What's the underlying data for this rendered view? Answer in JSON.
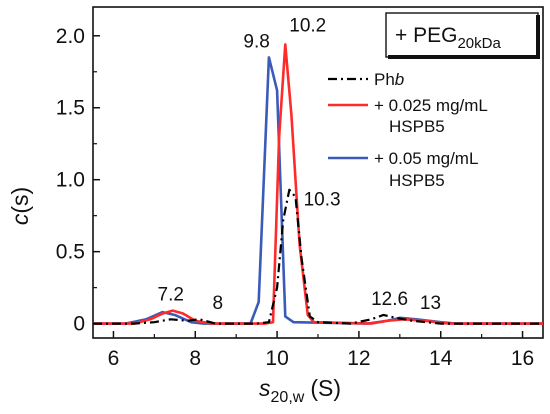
{
  "chart_data": {
    "type": "line",
    "xlabel_main": "s",
    "xlabel_sub": "20,w",
    "xlabel_unit": "(S)",
    "ylabel_main": "c",
    "ylabel_unit": "(s)",
    "xlim": [
      5.5,
      16.5
    ],
    "ylim": [
      -0.1,
      2.2
    ],
    "xticks": [
      6,
      8,
      10,
      12,
      14,
      16
    ],
    "yticks": [
      0,
      0.5,
      1.0,
      1.5,
      2.0
    ],
    "ytick_labels": [
      "0",
      "0.5",
      "1.0",
      "1.5",
      "2.0"
    ],
    "condition_main": "+ PEG",
    "condition_sub": "20kDa",
    "legend_position": "top-right",
    "series": [
      {
        "name": "Phb",
        "name_main": "Ph",
        "name_italic": "b",
        "color": "#000000",
        "dash": "dash-dot",
        "points": [
          [
            5.5,
            0
          ],
          [
            6.5,
            0
          ],
          [
            7.0,
            0.01
          ],
          [
            7.4,
            0.03
          ],
          [
            7.8,
            0.02
          ],
          [
            8.1,
            0.03
          ],
          [
            8.5,
            0.0
          ],
          [
            9.5,
            0.0
          ],
          [
            9.8,
            0.01
          ],
          [
            10.0,
            0.25
          ],
          [
            10.15,
            0.72
          ],
          [
            10.3,
            0.93
          ],
          [
            10.45,
            0.88
          ],
          [
            10.6,
            0.45
          ],
          [
            10.8,
            0.05
          ],
          [
            11.0,
            0.01
          ],
          [
            11.8,
            0.0
          ],
          [
            12.3,
            0.03
          ],
          [
            12.6,
            0.06
          ],
          [
            12.9,
            0.04
          ],
          [
            13.3,
            0.02
          ],
          [
            14.0,
            0.0
          ],
          [
            16.5,
            0.0
          ]
        ]
      },
      {
        "name": "+ 0.025 mg/mL HSPB5",
        "line1": "+ 0.025 mg/mL",
        "line2": "HSPB5",
        "color": "#ff2b2b",
        "dash": "solid",
        "points": [
          [
            5.5,
            0
          ],
          [
            6.5,
            0
          ],
          [
            6.9,
            0.03
          ],
          [
            7.2,
            0.07
          ],
          [
            7.45,
            0.09
          ],
          [
            7.7,
            0.07
          ],
          [
            8.0,
            0.02
          ],
          [
            8.4,
            0.0
          ],
          [
            9.7,
            0.0
          ],
          [
            9.9,
            0.01
          ],
          [
            10.05,
            1.3
          ],
          [
            10.2,
            1.94
          ],
          [
            10.35,
            1.45
          ],
          [
            10.55,
            0.55
          ],
          [
            10.75,
            0.06
          ],
          [
            10.9,
            0.01
          ],
          [
            12.3,
            0.0
          ],
          [
            12.7,
            0.02
          ],
          [
            13.1,
            0.03
          ],
          [
            13.6,
            0.02
          ],
          [
            14.2,
            0.0
          ],
          [
            16.5,
            0.0
          ]
        ]
      },
      {
        "name": "+ 0.05 mg/mL HSPB5",
        "line1": "+ 0.05 mg/mL",
        "line2": "HSPB5",
        "color": "#3a5bb8",
        "dash": "solid",
        "points": [
          [
            5.5,
            0
          ],
          [
            6.3,
            0
          ],
          [
            6.8,
            0.03
          ],
          [
            7.2,
            0.08
          ],
          [
            7.5,
            0.06
          ],
          [
            7.9,
            0.01
          ],
          [
            8.2,
            0.0
          ],
          [
            9.35,
            0.0
          ],
          [
            9.55,
            0.15
          ],
          [
            9.8,
            1.85
          ],
          [
            10.0,
            1.62
          ],
          [
            10.2,
            0.05
          ],
          [
            10.4,
            0.01
          ],
          [
            12.2,
            0.0
          ],
          [
            12.7,
            0.02
          ],
          [
            13.0,
            0.04
          ],
          [
            13.4,
            0.03
          ],
          [
            14.0,
            0.01
          ],
          [
            14.4,
            0.0
          ],
          [
            16.5,
            0.0
          ]
        ]
      }
    ],
    "annotations": [
      {
        "text": "9.8",
        "x": 9.5,
        "y": 1.92
      },
      {
        "text": "10.2",
        "x": 10.75,
        "y": 2.03
      },
      {
        "text": "10.3",
        "x": 11.1,
        "y": 0.82
      },
      {
        "text": "7.2",
        "x": 7.4,
        "y": 0.16
      },
      {
        "text": "8",
        "x": 8.55,
        "y": 0.1
      },
      {
        "text": "12.6",
        "x": 12.75,
        "y": 0.13
      },
      {
        "text": "13",
        "x": 13.75,
        "y": 0.1
      }
    ]
  }
}
